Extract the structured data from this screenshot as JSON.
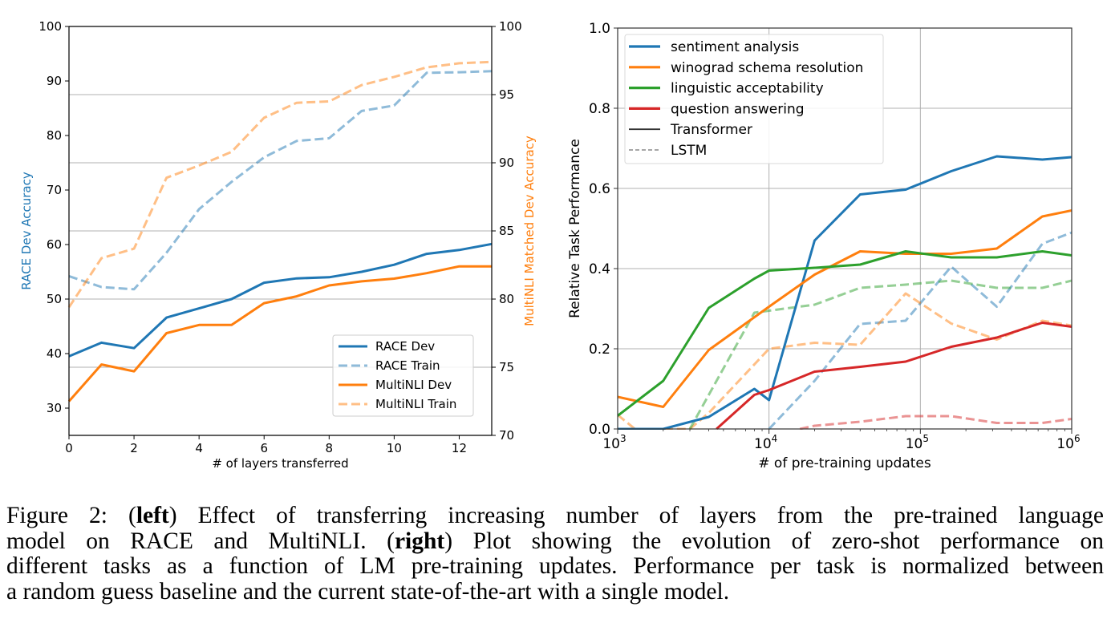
{
  "chart_data": [
    {
      "type": "line",
      "position": "left",
      "title": "",
      "xlabel": "# of layers transferred",
      "ylabel": "RACE Dev Accuracy",
      "ylabel_right": "MultiNLI Matched Dev Accuracy",
      "ylabel_color": "#1f77b4",
      "ylabel_right_color": "#ff7f0e",
      "xlim": [
        0,
        13
      ],
      "ylim": [
        25,
        100
      ],
      "ylim_right": [
        70,
        100
      ],
      "xticks": [
        0,
        2,
        4,
        6,
        8,
        10,
        12
      ],
      "yticks": [
        30,
        40,
        50,
        60,
        70,
        80,
        90,
        100
      ],
      "yticks_right": [
        70,
        75,
        80,
        85,
        90,
        95,
        100
      ],
      "grid": "horizontal (right axis)",
      "legend_position": "lower-right",
      "x": [
        0,
        1,
        2,
        3,
        4,
        5,
        6,
        7,
        8,
        9,
        10,
        11,
        12,
        13
      ],
      "series": [
        {
          "name": "RACE Dev",
          "axis": "left",
          "color": "#1f77b4",
          "style": "solid",
          "alpha": 1.0,
          "values": [
            39.5,
            42.0,
            41.0,
            46.6,
            48.3,
            50.0,
            53.0,
            53.8,
            54.0,
            55.0,
            56.3,
            58.3,
            59.0,
            60.1
          ]
        },
        {
          "name": "RACE Train",
          "axis": "left",
          "color": "#1f77b4",
          "style": "dashed",
          "alpha": 0.5,
          "values": [
            54.2,
            52.2,
            51.8,
            58.5,
            66.5,
            71.5,
            76.0,
            79.0,
            79.5,
            84.5,
            85.5,
            91.5,
            91.6,
            91.8
          ]
        },
        {
          "name": "MultiNLI Dev",
          "axis": "right",
          "color": "#ff7f0e",
          "style": "solid",
          "alpha": 1.0,
          "values": [
            72.5,
            75.2,
            74.7,
            77.5,
            78.1,
            78.1,
            79.7,
            80.2,
            81.0,
            81.3,
            81.5,
            81.9,
            82.4,
            82.4
          ]
        },
        {
          "name": "MultiNLI Train",
          "axis": "right",
          "color": "#ff7f0e",
          "style": "dashed",
          "alpha": 0.5,
          "values": [
            79.4,
            83.0,
            83.7,
            88.9,
            89.8,
            90.8,
            93.3,
            94.4,
            94.5,
            95.7,
            96.3,
            97.0,
            97.3,
            97.4
          ]
        }
      ]
    },
    {
      "type": "line",
      "position": "right",
      "title": "",
      "xlabel": "# of pre-training updates",
      "ylabel": "Relative Task Performance",
      "xscale": "log",
      "xlim": [
        1000,
        1000000
      ],
      "ylim": [
        0.0,
        1.0
      ],
      "xticks": [
        {
          "value": 1000,
          "base": "10",
          "exp": "3"
        },
        {
          "value": 10000,
          "base": "10",
          "exp": "4"
        },
        {
          "value": 100000,
          "base": "10",
          "exp": "5"
        },
        {
          "value": 1000000,
          "base": "10",
          "exp": "6"
        }
      ],
      "yticks": [
        "0.0",
        "0.2",
        "0.4",
        "0.6",
        "0.8",
        "1.0"
      ],
      "grid": "on",
      "legend_position": "upper-left",
      "legend": [
        {
          "label": "sentiment analysis",
          "color": "#1f77b4",
          "style": "solid"
        },
        {
          "label": "winograd schema resolution",
          "color": "#ff7f0e",
          "style": "solid"
        },
        {
          "label": "linguistic acceptability",
          "color": "#2ca02c",
          "style": "solid"
        },
        {
          "label": "question answering",
          "color": "#d62728",
          "style": "solid"
        },
        {
          "label": "Transformer",
          "color": "#333333",
          "style": "solid"
        },
        {
          "label": "LSTM",
          "color": "#999999",
          "style": "dashed"
        }
      ],
      "series": [
        {
          "name": "sentiment analysis (Transformer)",
          "color": "#1f77b4",
          "style": "solid",
          "alpha": 1.0,
          "x": [
            1000,
            2000,
            4000,
            8000,
            10000,
            20000,
            40000,
            80000,
            160000,
            320000,
            640000,
            1000000
          ],
          "values": [
            0.0,
            0.0,
            0.03,
            0.1,
            0.072,
            0.47,
            0.585,
            0.597,
            0.643,
            0.68,
            0.672,
            0.678
          ]
        },
        {
          "name": "winograd schema resolution (Transformer)",
          "color": "#ff7f0e",
          "style": "solid",
          "alpha": 1.0,
          "x": [
            1000,
            2000,
            4000,
            10000,
            20000,
            40000,
            80000,
            160000,
            320000,
            640000,
            1000000
          ],
          "values": [
            0.08,
            0.055,
            0.197,
            0.305,
            0.385,
            0.443,
            0.437,
            0.437,
            0.45,
            0.53,
            0.545
          ]
        },
        {
          "name": "linguistic acceptability (Transformer)",
          "color": "#2ca02c",
          "style": "solid",
          "alpha": 1.0,
          "x": [
            1000,
            2000,
            4000,
            8000,
            10000,
            20000,
            40000,
            80000,
            160000,
            320000,
            640000,
            1000000
          ],
          "values": [
            0.033,
            0.12,
            0.302,
            0.375,
            0.395,
            0.402,
            0.41,
            0.443,
            0.428,
            0.428,
            0.443,
            0.433
          ]
        },
        {
          "name": "question answering (Transformer)",
          "color": "#d62728",
          "style": "solid",
          "alpha": 1.0,
          "x": [
            4500,
            8000,
            10000,
            20000,
            40000,
            80000,
            160000,
            320000,
            640000,
            1000000
          ],
          "values": [
            0.0,
            0.085,
            0.097,
            0.143,
            0.155,
            0.168,
            0.205,
            0.228,
            0.265,
            0.255
          ]
        },
        {
          "name": "sentiment analysis (LSTM)",
          "color": "#1f77b4",
          "style": "dashed",
          "alpha": 0.5,
          "x": [
            10000,
            20000,
            40000,
            80000,
            160000,
            320000,
            640000,
            1000000
          ],
          "values": [
            0.0,
            0.12,
            0.262,
            0.27,
            0.405,
            0.305,
            0.462,
            0.49
          ]
        },
        {
          "name": "winograd schema resolution (LSTM)",
          "color": "#ff7f0e",
          "style": "dashed",
          "alpha": 0.5,
          "x": [
            1000,
            1300,
            3000,
            4000,
            10000,
            20000,
            40000,
            80000,
            160000,
            320000,
            640000,
            1000000
          ],
          "values": [
            0.035,
            0.0,
            0.0,
            0.04,
            0.2,
            0.215,
            0.21,
            0.338,
            0.263,
            0.223,
            0.27,
            0.258
          ]
        },
        {
          "name": "linguistic acceptability (LSTM)",
          "color": "#2ca02c",
          "style": "dashed",
          "alpha": 0.5,
          "x": [
            3000,
            8000,
            10000,
            20000,
            40000,
            80000,
            160000,
            320000,
            640000,
            1000000
          ],
          "values": [
            0.0,
            0.29,
            0.295,
            0.31,
            0.352,
            0.36,
            0.37,
            0.352,
            0.352,
            0.37
          ]
        },
        {
          "name": "question answering (LSTM)",
          "color": "#d62728",
          "style": "dashed",
          "alpha": 0.5,
          "x": [
            16000,
            20000,
            40000,
            80000,
            160000,
            320000,
            640000,
            1000000
          ],
          "values": [
            0.0,
            0.008,
            0.018,
            0.032,
            0.032,
            0.015,
            0.015,
            0.025
          ]
        }
      ]
    }
  ],
  "caption": {
    "lines": [
      [
        {
          "t": "Figure 2: (",
          "b": false
        },
        {
          "t": "left",
          "b": true
        },
        {
          "t": ") Effect of transferring increasing number of layers from the pre-trained language",
          "b": false
        }
      ],
      [
        {
          "t": "model on RACE and MultiNLI. (",
          "b": false
        },
        {
          "t": "right",
          "b": true
        },
        {
          "t": ") Plot showing the evolution of zero-shot performance on",
          "b": false
        }
      ],
      [
        {
          "t": "different tasks as a function of LM pre-training updates. Performance per task is normalized between",
          "b": false
        }
      ],
      [
        {
          "t": "a random guess baseline and the current state-of-the-art with a single model.",
          "b": false
        }
      ]
    ]
  }
}
